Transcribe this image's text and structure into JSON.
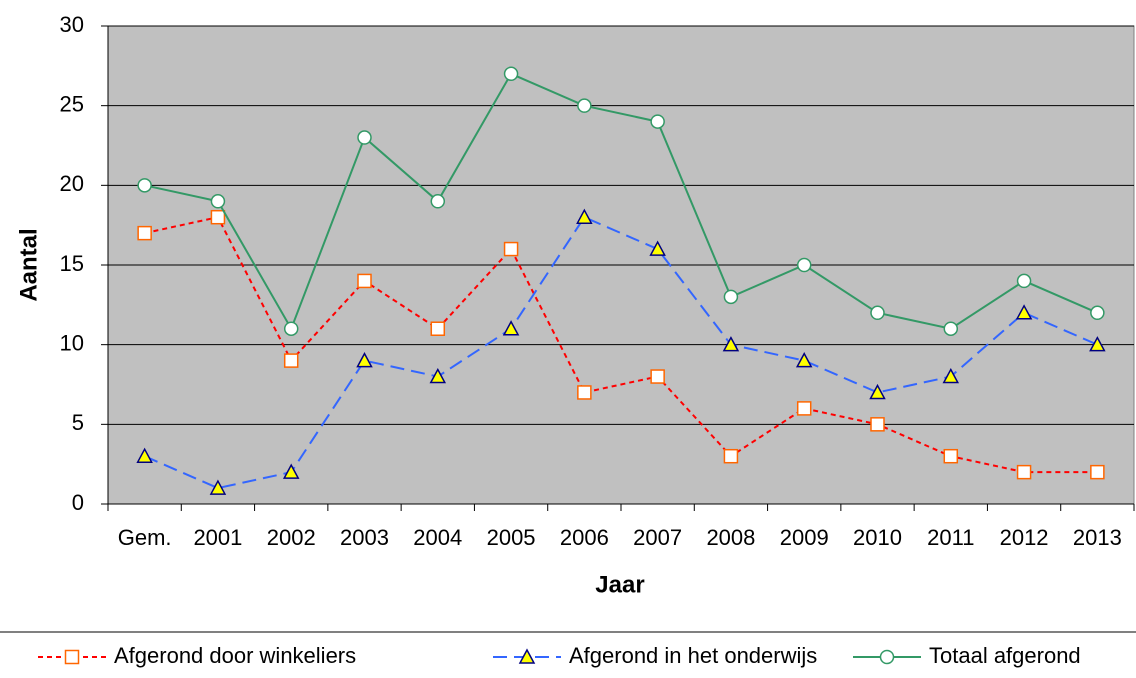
{
  "chart_data": {
    "type": "line",
    "x_label": "Jaar",
    "y_label": "Aantal",
    "categories": [
      "Gem.",
      "2001",
      "2002",
      "2003",
      "2004",
      "2005",
      "2006",
      "2007",
      "2008",
      "2009",
      "2010",
      "2011",
      "2012",
      "2013"
    ],
    "series": [
      {
        "name": "Afgerond door winkeliers",
        "color": "#ff0000",
        "marker": "square",
        "marker_stroke": "#ff6600",
        "marker_fill": "#ffffff",
        "dash": "short",
        "values": [
          17,
          18,
          9,
          14,
          11,
          16,
          7,
          8,
          3,
          6,
          5,
          3,
          2,
          2
        ]
      },
      {
        "name": "Afgerond in het onderwijs",
        "color": "#3366ff",
        "marker": "triangle",
        "marker_stroke": "#000080",
        "marker_fill": "#ffff00",
        "dash": "long",
        "values": [
          3,
          1,
          2,
          9,
          8,
          11,
          18,
          16,
          10,
          9,
          7,
          8,
          12,
          10
        ]
      },
      {
        "name": "Totaal afgerond",
        "color": "#339966",
        "marker": "circle",
        "marker_stroke": "#339966",
        "marker_fill": "#ffffff",
        "dash": "solid",
        "values": [
          20,
          19,
          11,
          23,
          19,
          27,
          25,
          24,
          13,
          15,
          12,
          11,
          14,
          12
        ]
      }
    ],
    "ylim": [
      0,
      30
    ],
    "yticks": [
      0,
      5,
      10,
      15,
      20,
      25,
      30
    ],
    "grid": true,
    "background": "#c0c0c0",
    "legend": "bottom"
  }
}
